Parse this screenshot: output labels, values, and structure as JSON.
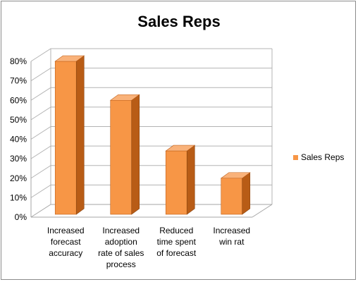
{
  "chart_data": {
    "type": "bar",
    "title": "Sales Reps",
    "categories": [
      "Increased forecast accuracy",
      "Increased adoption rate of sales process",
      "Reduced time spent of forecast",
      "Increased win rat"
    ],
    "series": [
      {
        "name": "Sales Reps",
        "values": [
          80,
          60,
          34,
          20
        ],
        "color": "#f79646"
      }
    ],
    "y_ticks": [
      "0%",
      "10%",
      "20%",
      "30%",
      "40%",
      "50%",
      "60%",
      "70%",
      "80%"
    ],
    "ylim": [
      0,
      80
    ],
    "grid": true,
    "legend_position": "right",
    "style": "3d"
  }
}
